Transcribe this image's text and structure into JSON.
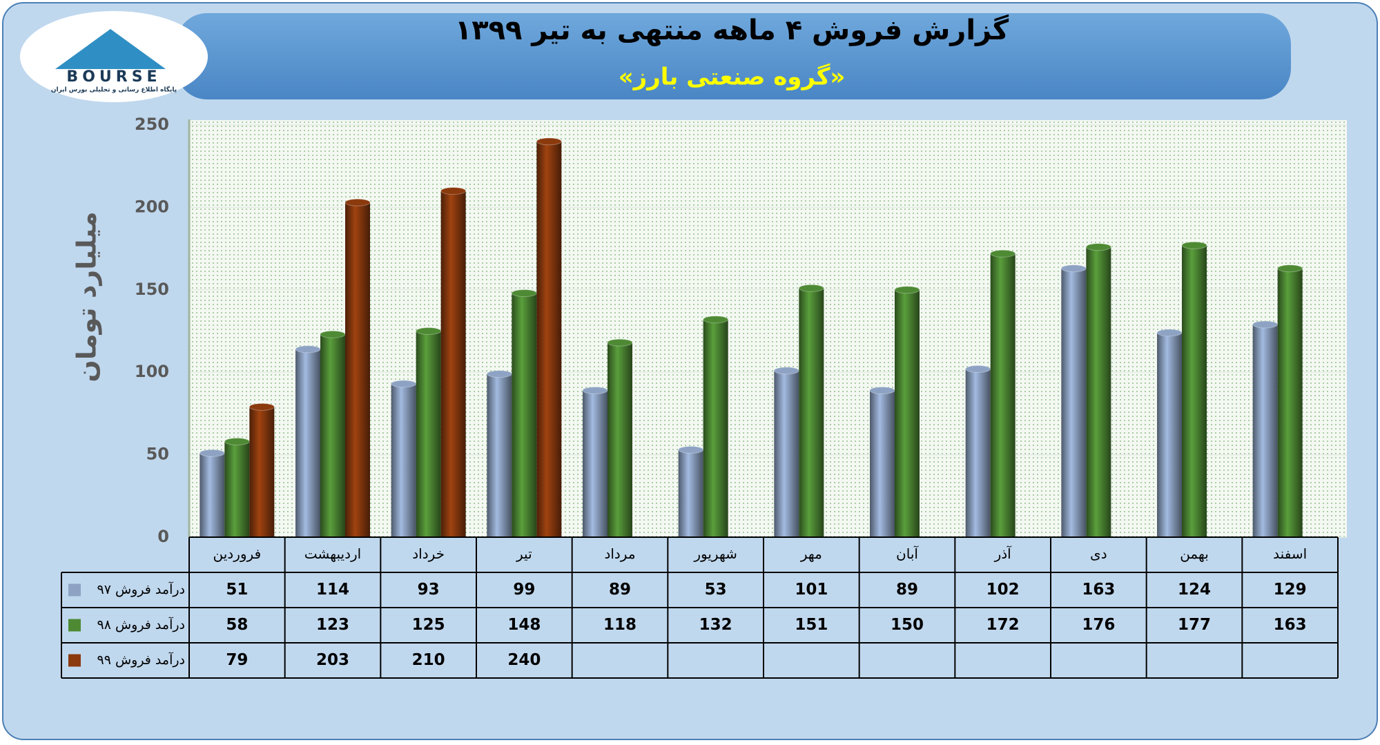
{
  "chart_data": {
    "type": "bar",
    "title": "گزارش فروش ۴ ماهه منتهی به تیر ۱۳۹۹",
    "subtitle": "«گروه صنعتی بارز»",
    "y_label": "میلیارد تومان",
    "logo": {
      "text": "BOURSE",
      "tagline": "پایگاه اطلاع رسانی و تحلیلی بورس ایران"
    },
    "categories": [
      "فروردین",
      "اردیبهشت",
      "خرداد",
      "تیر",
      "مرداد",
      "شهریور",
      "مهر",
      "آبان",
      "آذر",
      "دی",
      "بهمن",
      "اسفند"
    ],
    "series": [
      {
        "name": "درآمد فروش ۹۷",
        "color": "#8ea3c4",
        "values": [
          51,
          114,
          93,
          99,
          89,
          53,
          101,
          89,
          102,
          163,
          124,
          129
        ]
      },
      {
        "name": "درآمد فروش ۹۸",
        "color": "#4e8a34",
        "values": [
          58,
          123,
          125,
          148,
          118,
          132,
          151,
          150,
          172,
          176,
          177,
          163
        ]
      },
      {
        "name": "درآمد فروش ۹۹",
        "color": "#8b3a0e",
        "values": [
          79,
          203,
          210,
          240,
          null,
          null,
          null,
          null,
          null,
          null,
          null,
          null
        ]
      }
    ],
    "ylim": [
      0,
      250
    ],
    "yticks": [
      0,
      50,
      100,
      150,
      200,
      250
    ],
    "grid": true
  }
}
